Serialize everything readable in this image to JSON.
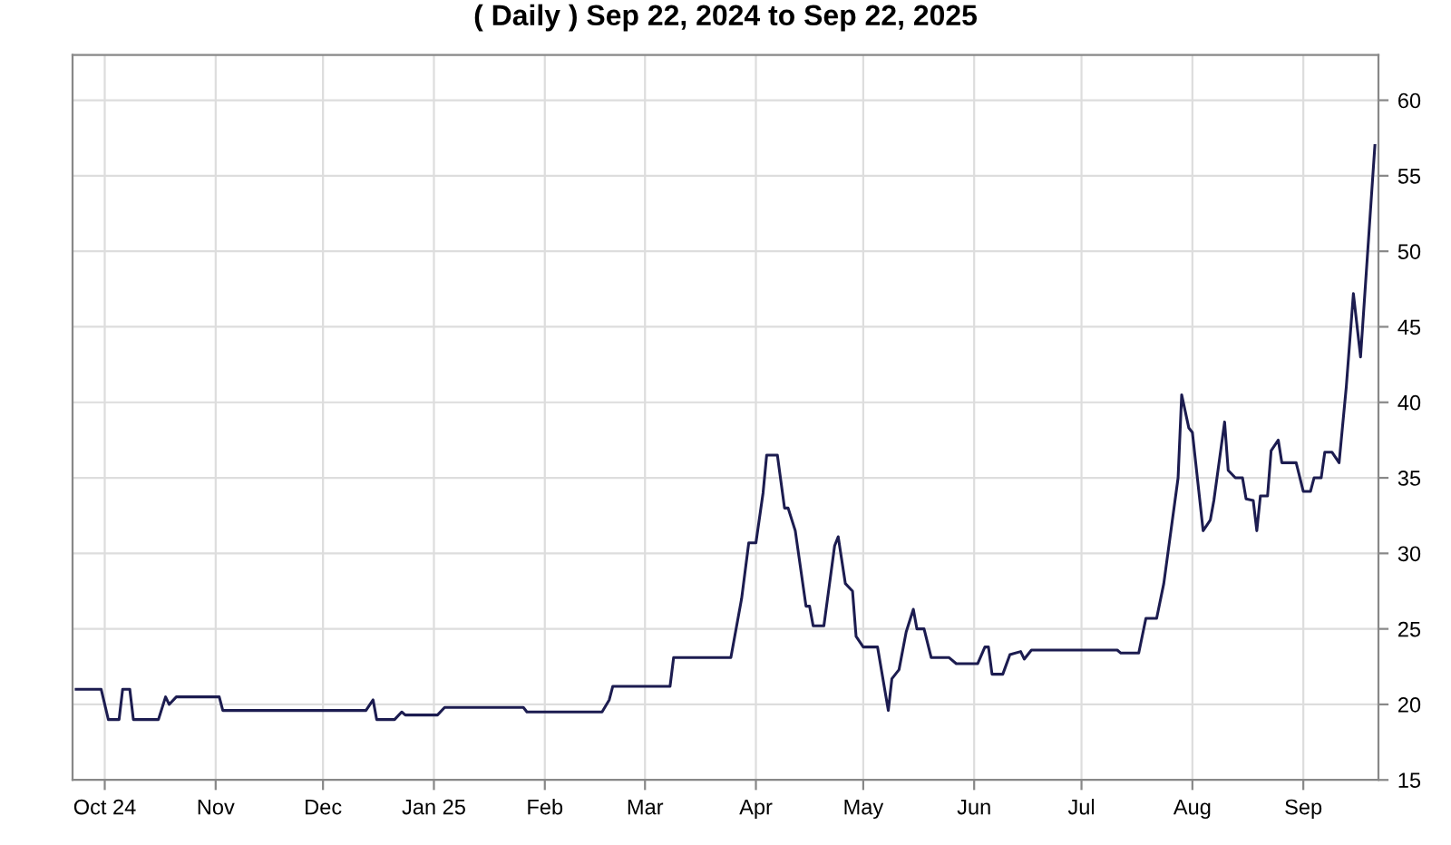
{
  "chart_data": {
    "type": "line",
    "title": "( Daily ) Sep 22, 2024 to Sep 22, 2025",
    "x": [
      "2024-09-23",
      "2024-09-30",
      "2024-10-02",
      "2024-10-05",
      "2024-10-06",
      "2024-10-08",
      "2024-10-09",
      "2024-10-16",
      "2024-10-18",
      "2024-10-19",
      "2024-10-21",
      "2024-11-02",
      "2024-11-03",
      "2024-12-13",
      "2024-12-15",
      "2024-12-16",
      "2024-12-21",
      "2024-12-23",
      "2024-12-24",
      "2025-01-02",
      "2025-01-04",
      "2025-01-26",
      "2025-01-27",
      "2025-02-17",
      "2025-02-19",
      "2025-02-20",
      "2025-03-08",
      "2025-03-09",
      "2025-03-25",
      "2025-03-28",
      "2025-03-30",
      "2025-04-01",
      "2025-04-03",
      "2025-04-04",
      "2025-04-07",
      "2025-04-09",
      "2025-04-10",
      "2025-04-12",
      "2025-04-15",
      "2025-04-16",
      "2025-04-17",
      "2025-04-20",
      "2025-04-23",
      "2025-04-24",
      "2025-04-26",
      "2025-04-28",
      "2025-04-29",
      "2025-05-01",
      "2025-05-05",
      "2025-05-08",
      "2025-05-09",
      "2025-05-11",
      "2025-05-13",
      "2025-05-15",
      "2025-05-16",
      "2025-05-18",
      "2025-05-20",
      "2025-05-25",
      "2025-05-27",
      "2025-06-02",
      "2025-06-04",
      "2025-06-05",
      "2025-06-06",
      "2025-06-09",
      "2025-06-11",
      "2025-06-14",
      "2025-06-15",
      "2025-06-17",
      "2025-07-11",
      "2025-07-12",
      "2025-07-17",
      "2025-07-19",
      "2025-07-22",
      "2025-07-24",
      "2025-07-28",
      "2025-07-29",
      "2025-07-31",
      "2025-08-01",
      "2025-08-04",
      "2025-08-06",
      "2025-08-07",
      "2025-08-10",
      "2025-08-11",
      "2025-08-13",
      "2025-08-15",
      "2025-08-16",
      "2025-08-18",
      "2025-08-19",
      "2025-08-20",
      "2025-08-22",
      "2025-08-23",
      "2025-08-25",
      "2025-08-26",
      "2025-08-30",
      "2025-09-01",
      "2025-09-03",
      "2025-09-04",
      "2025-09-06",
      "2025-09-07",
      "2025-09-09",
      "2025-09-11",
      "2025-09-13",
      "2025-09-15",
      "2025-09-17",
      "2025-09-21"
    ],
    "series": [
      {
        "color": "#1c1c50",
        "values": [
          21,
          21,
          19,
          19,
          21,
          21,
          19,
          19,
          20.5,
          20,
          20.5,
          20.5,
          19.6,
          19.6,
          20.3,
          19,
          19,
          19.5,
          19.3,
          19.3,
          19.8,
          19.8,
          19.5,
          19.5,
          20.3,
          21.2,
          21.2,
          23.1,
          23.1,
          27,
          30.7,
          30.7,
          34,
          36.5,
          36.5,
          33,
          33,
          31.5,
          26.5,
          26.5,
          25.2,
          25.2,
          30.5,
          31.1,
          28,
          27.5,
          24.5,
          23.8,
          23.8,
          19.6,
          21.7,
          22.3,
          24.8,
          26.3,
          25,
          25,
          23.1,
          23.1,
          22.7,
          22.7,
          23.8,
          23.8,
          22,
          22,
          23.3,
          23.5,
          23,
          23.6,
          23.6,
          23.4,
          23.4,
          25.7,
          25.7,
          28,
          35,
          40.5,
          38.3,
          38,
          31.5,
          32.2,
          33.5,
          38.7,
          35.5,
          35,
          35,
          33.6,
          33.5,
          31.5,
          33.8,
          33.8,
          36.8,
          37.5,
          36,
          36,
          34.1,
          34.1,
          35,
          35,
          36.7,
          36.7,
          36,
          41,
          47.2,
          43,
          57
        ]
      }
    ],
    "xlim": [
      "2024-09-22",
      "2025-09-22"
    ],
    "xticks": [
      {
        "value": "2024-10-01",
        "label": "Oct 24"
      },
      {
        "value": "2024-11-01",
        "label": "Nov"
      },
      {
        "value": "2024-12-01",
        "label": "Dec"
      },
      {
        "value": "2025-01-01",
        "label": "Jan 25"
      },
      {
        "value": "2025-02-01",
        "label": "Feb"
      },
      {
        "value": "2025-03-01",
        "label": "Mar"
      },
      {
        "value": "2025-04-01",
        "label": "Apr"
      },
      {
        "value": "2025-05-01",
        "label": "May"
      },
      {
        "value": "2025-06-01",
        "label": "Jun"
      },
      {
        "value": "2025-07-01",
        "label": "Jul"
      },
      {
        "value": "2025-08-01",
        "label": "Aug"
      },
      {
        "value": "2025-09-01",
        "label": "Sep"
      }
    ],
    "ylim": [
      15,
      63
    ],
    "yticks": [
      15,
      20,
      25,
      30,
      35,
      40,
      45,
      50,
      55,
      60
    ],
    "grid": true
  }
}
